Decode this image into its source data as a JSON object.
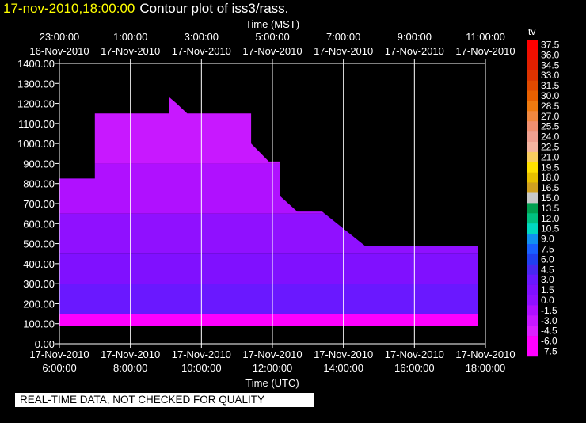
{
  "title": {
    "timestamp": "17-nov-2010,18:00:00",
    "text": "Contour plot of iss3/rass."
  },
  "note": "REAL-TIME DATA, NOT CHECKED FOR QUALITY",
  "chart_data": {
    "type": "heatmap",
    "top_axis_label": "Time (MST)",
    "bottom_axis_label": "Time (UTC)",
    "top_ticks": [
      {
        "time": "23:00:00",
        "date": "16-Nov-2010"
      },
      {
        "time": "1:00:00",
        "date": "17-Nov-2010"
      },
      {
        "time": "3:00:00",
        "date": "17-Nov-2010"
      },
      {
        "time": "5:00:00",
        "date": "17-Nov-2010"
      },
      {
        "time": "7:00:00",
        "date": "17-Nov-2010"
      },
      {
        "time": "9:00:00",
        "date": "17-Nov-2010"
      },
      {
        "time": "11:00:00",
        "date": "17-Nov-2010"
      }
    ],
    "bottom_ticks": [
      {
        "date": "17-Nov-2010",
        "time": "6:00:00"
      },
      {
        "date": "17-Nov-2010",
        "time": "8:00:00"
      },
      {
        "date": "17-Nov-2010",
        "time": "10:00:00"
      },
      {
        "date": "17-Nov-2010",
        "time": "12:00:00"
      },
      {
        "date": "17-Nov-2010",
        "time": "14:00:00"
      },
      {
        "date": "17-Nov-2010",
        "time": "16:00:00"
      },
      {
        "date": "17-Nov-2010",
        "time": "18:00:00"
      }
    ],
    "x_range_hours_utc": [
      6,
      18
    ],
    "y_ticks": [
      "0.00",
      "100.00",
      "200.00",
      "300.00",
      "400.00",
      "500.00",
      "600.00",
      "700.00",
      "800.00",
      "900.00",
      "1000.00",
      "1100.00",
      "1200.00",
      "1300.00",
      "1400.00"
    ],
    "y_range": [
      0,
      1400
    ],
    "gridlines": "vertical",
    "colorbar": {
      "label": "tv",
      "levels": [
        "37.5",
        "36.0",
        "34.5",
        "33.0",
        "31.5",
        "30.0",
        "28.5",
        "27.0",
        "25.5",
        "24.0",
        "22.5",
        "21.0",
        "19.5",
        "18.0",
        "16.5",
        "15.0",
        "13.5",
        "12.0",
        "10.5",
        "9.0",
        "7.5",
        "6.0",
        "4.5",
        "3.0",
        "1.5",
        "0.0",
        "-1.5",
        "-3.0",
        "-4.5",
        "-6.0",
        "-7.5"
      ],
      "colors": [
        "#ff0000",
        "#ee1000",
        "#e02000",
        "#dd3300",
        "#e04a00",
        "#e86000",
        "#ee7a10",
        "#f08840",
        "#f09070",
        "#f0a090",
        "#f4b4a0",
        "#f8cc60",
        "#ffe000",
        "#e8c000",
        "#d0a020",
        "#c8c8c8",
        "#00a050",
        "#00c080",
        "#00d8c0",
        "#1090f0",
        "#1860ff",
        "#2040f0",
        "#4828f0",
        "#6a18ff",
        "#8010ff",
        "#9010ff",
        "#b010ff",
        "#c818ff",
        "#dd20ff",
        "#ff00ff",
        "#ff00ff"
      ]
    },
    "data_top_envelope": [
      {
        "hour_utc": 6.0,
        "height": 825
      },
      {
        "hour_utc": 7.0,
        "height": 825
      },
      {
        "hour_utc": 7.0,
        "height": 1150
      },
      {
        "hour_utc": 9.1,
        "height": 1150
      },
      {
        "hour_utc": 9.1,
        "height": 1230
      },
      {
        "hour_utc": 9.3,
        "height": 1200
      },
      {
        "hour_utc": 9.6,
        "height": 1150
      },
      {
        "hour_utc": 11.4,
        "height": 1150
      },
      {
        "hour_utc": 11.4,
        "height": 1000
      },
      {
        "hour_utc": 11.9,
        "height": 910
      },
      {
        "hour_utc": 12.2,
        "height": 910
      },
      {
        "hour_utc": 12.2,
        "height": 740
      },
      {
        "hour_utc": 12.7,
        "height": 660
      },
      {
        "hour_utc": 13.4,
        "height": 660
      },
      {
        "hour_utc": 14.6,
        "height": 490
      },
      {
        "hour_utc": 17.8,
        "height": 490
      },
      {
        "hour_utc": 17.8,
        "height": 90
      },
      {
        "hour_utc": 6.0,
        "height": 90
      }
    ],
    "value_bands": [
      {
        "height_range": [
          900,
          1230
        ],
        "tv": -3.0
      },
      {
        "height_range": [
          650,
          900
        ],
        "tv": -1.5
      },
      {
        "height_range": [
          450,
          650
        ],
        "tv": 0.0
      },
      {
        "height_range": [
          300,
          450
        ],
        "tv": 1.5
      },
      {
        "height_range": [
          150,
          300
        ],
        "tv": 3.0
      },
      {
        "height_range": [
          90,
          150
        ],
        "tv": -7.5
      }
    ]
  }
}
